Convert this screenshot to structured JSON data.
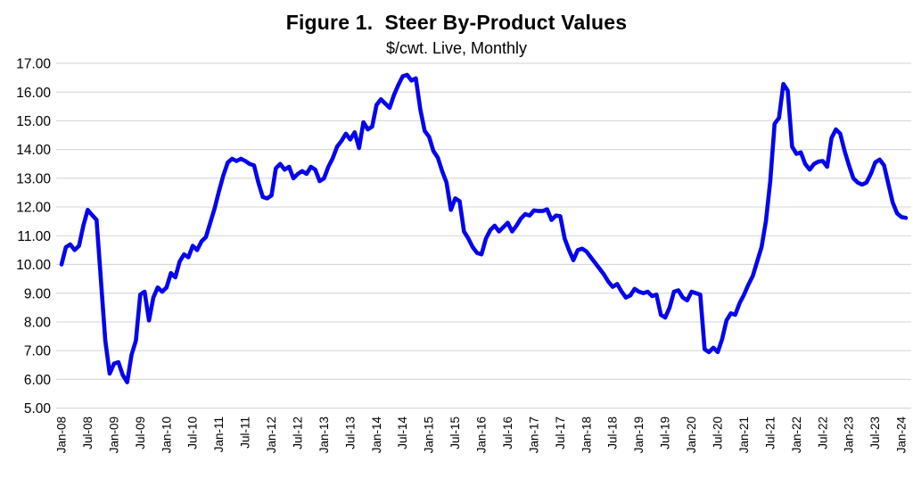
{
  "figure": {
    "title": "Figure 1.  Steer By-Product Values",
    "subtitle": "$/cwt. Live, Monthly"
  },
  "chart_data": {
    "type": "line",
    "title": "Figure 1.  Steer By-Product Values",
    "subtitle": "$/cwt. Live, Monthly",
    "frequency": "monthly",
    "start": "Jan-08",
    "end": "Feb-24",
    "ylim": [
      5,
      17
    ],
    "y_tick_step": 1,
    "y_tick_labels": [
      "17.00",
      "16.00",
      "15.00",
      "14.00",
      "13.00",
      "12.00",
      "11.00",
      "10.00",
      "9.00",
      "8.00",
      "7.00",
      "6.00",
      "5.00"
    ],
    "x_tick_every": 6,
    "x_tick_labels": [
      "Jan-08",
      "Jul-08",
      "Jan-09",
      "Jul-09",
      "Jan-10",
      "Jul-10",
      "Jan-11",
      "Jul-11",
      "Jan-12",
      "Jul-12",
      "Jan-13",
      "Jul-13",
      "Jan-14",
      "Jul-14",
      "Jan-15",
      "Jul-15",
      "Jan-16",
      "Jul-16",
      "Jan-17",
      "Jul-17",
      "Jan-18",
      "Jul-18",
      "Jan-19",
      "Jul-19",
      "Jan-20",
      "Jul-20",
      "Jan-21",
      "Jul-21",
      "Jan-22",
      "Jul-22",
      "Jan-23",
      "Jul-23",
      "Jan-24"
    ],
    "grid_on": true,
    "grid_color": "#d9d9d9",
    "legend_position": "none",
    "series": [
      {
        "name": "Steer by-product value, $/cwt live",
        "color": "#0404ee",
        "line_width": 4.6,
        "values": [
          10.0,
          10.6,
          10.7,
          10.5,
          10.65,
          11.35,
          11.9,
          11.72,
          11.55,
          9.45,
          7.35,
          6.2,
          6.55,
          6.6,
          6.15,
          5.9,
          6.85,
          7.35,
          8.95,
          9.05,
          8.05,
          8.85,
          9.2,
          9.05,
          9.2,
          9.7,
          9.55,
          10.1,
          10.35,
          10.25,
          10.65,
          10.5,
          10.8,
          10.95,
          11.45,
          11.95,
          12.55,
          13.1,
          13.55,
          13.68,
          13.6,
          13.68,
          13.6,
          13.5,
          13.45,
          12.85,
          12.35,
          12.3,
          12.4,
          13.35,
          13.5,
          13.3,
          13.4,
          13.0,
          13.15,
          13.25,
          13.15,
          13.4,
          13.3,
          12.9,
          13.0,
          13.4,
          13.7,
          14.1,
          14.3,
          14.55,
          14.35,
          14.6,
          14.05,
          14.95,
          14.7,
          14.8,
          15.55,
          15.75,
          15.6,
          15.45,
          15.9,
          16.25,
          16.55,
          16.6,
          16.4,
          16.48,
          15.4,
          14.65,
          14.45,
          13.95,
          13.72,
          13.25,
          12.85,
          11.9,
          12.3,
          12.2,
          11.15,
          10.9,
          10.6,
          10.4,
          10.35,
          10.9,
          11.2,
          11.35,
          11.15,
          11.3,
          11.45,
          11.15,
          11.35,
          11.6,
          11.75,
          11.7,
          11.88,
          11.86,
          11.86,
          11.92,
          11.55,
          11.7,
          11.68,
          10.9,
          10.5,
          10.15,
          10.5,
          10.55,
          10.45,
          10.25,
          10.05,
          9.85,
          9.65,
          9.4,
          9.22,
          9.32,
          9.06,
          8.85,
          8.92,
          9.15,
          9.05,
          9.0,
          9.05,
          8.9,
          8.95,
          8.25,
          8.15,
          8.5,
          9.05,
          9.1,
          8.85,
          8.75,
          9.05,
          9.0,
          8.95,
          7.05,
          6.95,
          7.1,
          6.95,
          7.4,
          8.05,
          8.3,
          8.25,
          8.65,
          8.95,
          9.3,
          9.6,
          10.1,
          10.6,
          11.5,
          12.9,
          14.9,
          15.1,
          16.28,
          16.05,
          14.1,
          13.85,
          13.9,
          13.5,
          13.3,
          13.5,
          13.58,
          13.6,
          13.4,
          14.4,
          14.7,
          14.55,
          13.95,
          13.45,
          13.0,
          12.85,
          12.78,
          12.85,
          13.15,
          13.55,
          13.65,
          13.45,
          12.8,
          12.15,
          11.78,
          11.65,
          11.62
        ]
      }
    ]
  }
}
